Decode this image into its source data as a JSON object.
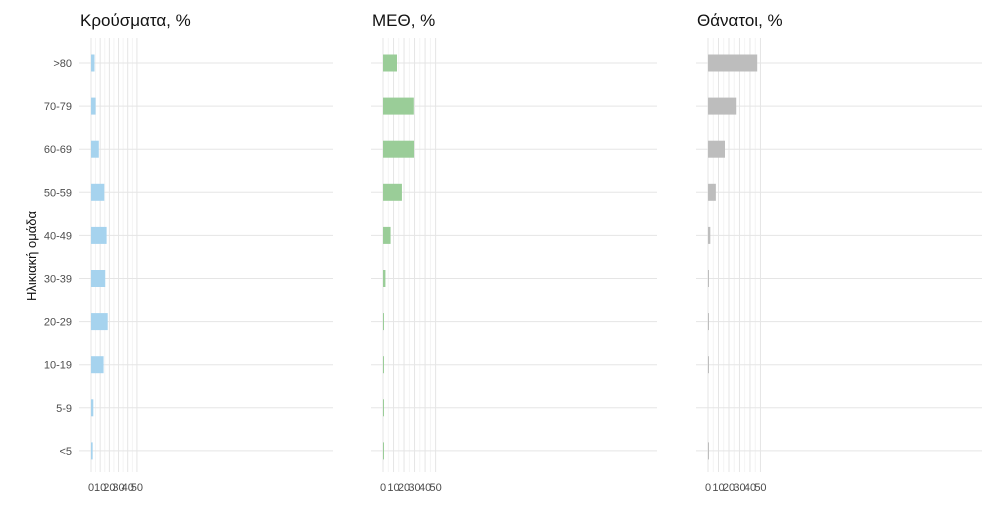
{
  "chart_data": {
    "type": "bar",
    "orientation": "horizontal",
    "ylabel": "Ηλικιακή ομάδα",
    "categories": [
      ">80",
      "70-79",
      "60-69",
      "50-59",
      "40-49",
      "30-39",
      "20-29",
      "10-19",
      "5-9",
      "<5"
    ],
    "xlim": [
      0,
      50
    ],
    "xticks": [
      0,
      10,
      20,
      30,
      40,
      50
    ],
    "grid": true,
    "panels": [
      {
        "title": "Κρούσματα, %",
        "color": "#a6d3ee",
        "values": [
          3.8,
          5.0,
          8.5,
          14.5,
          17.0,
          15.5,
          18.2,
          13.7,
          2.5,
          1.8
        ]
      },
      {
        "title": "ΜΕΘ, %",
        "color": "#9acd98",
        "values": [
          13.3,
          29.3,
          29.5,
          18.0,
          7.2,
          2.3,
          0.8,
          0.2,
          0.1,
          0.1
        ]
      },
      {
        "title": "Θάνατοι, %",
        "color": "#bdbdbd",
        "values": [
          46.9,
          26.9,
          16.2,
          7.5,
          2.2,
          0.8,
          0.2,
          0.1,
          0.0,
          0.1
        ]
      }
    ]
  }
}
